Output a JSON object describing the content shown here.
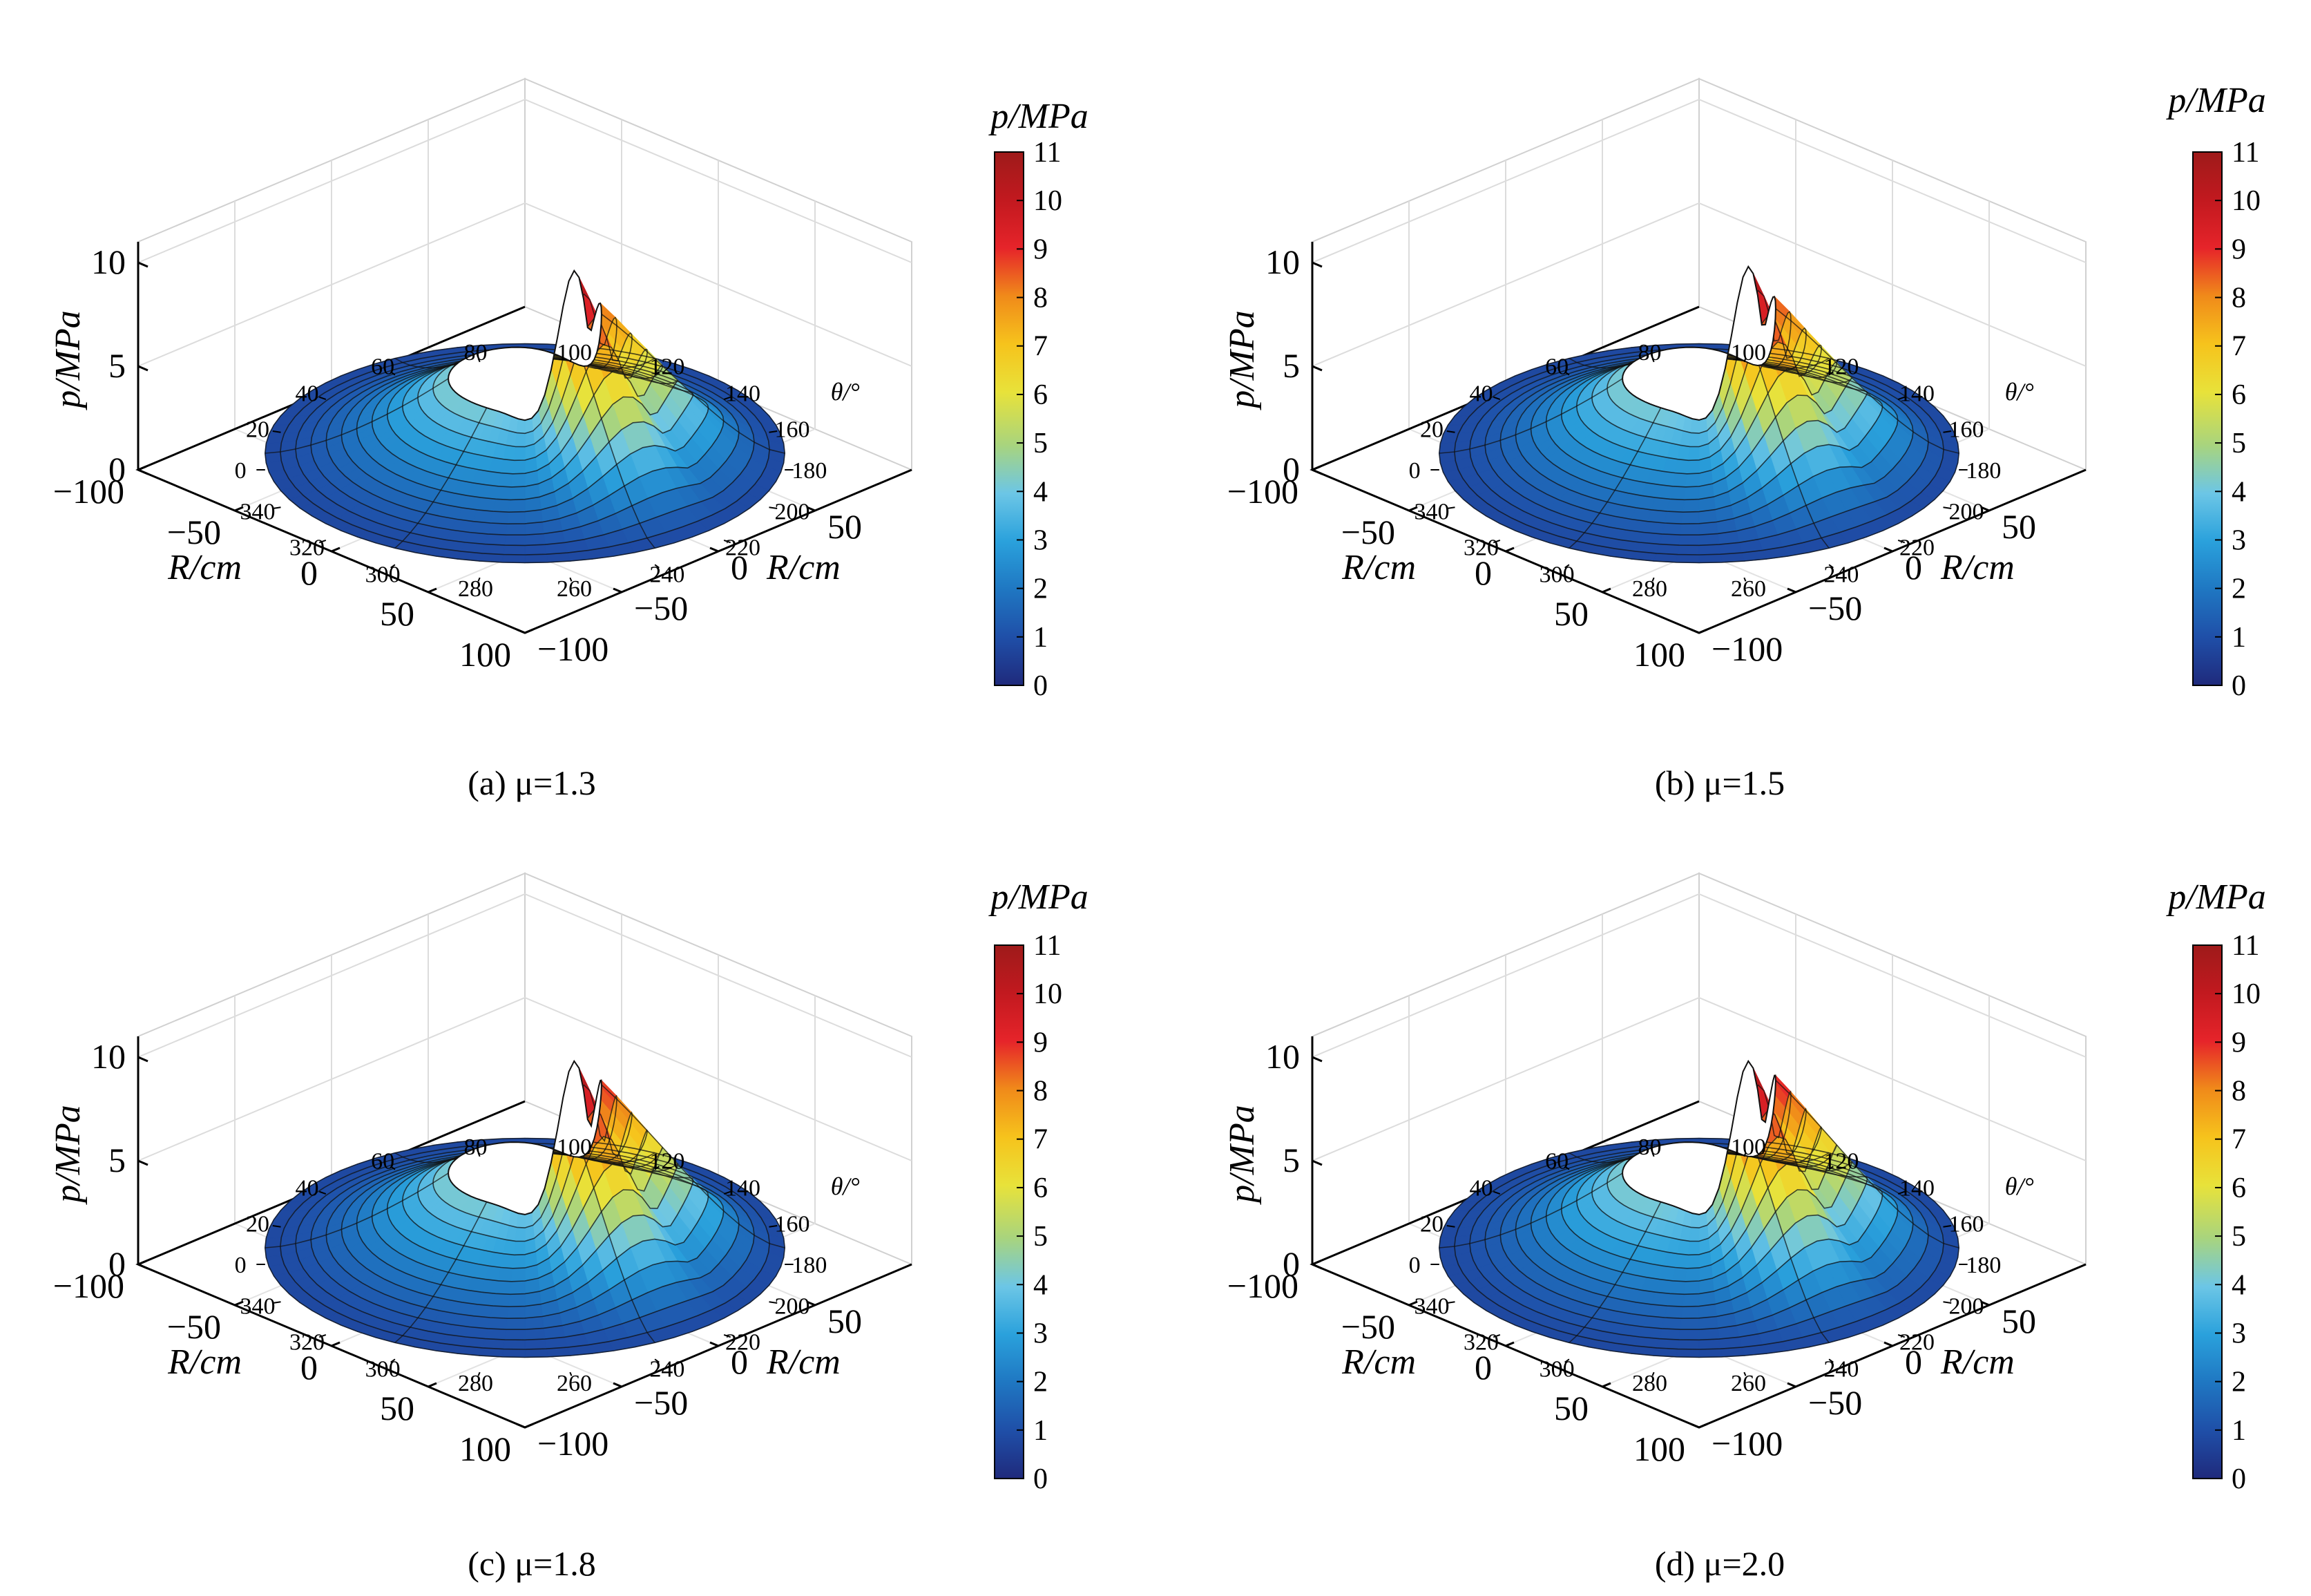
{
  "figure": {
    "colorbar_title": "p/MPa",
    "colorbar_ticks": [
      "0",
      "1",
      "2",
      "3",
      "4",
      "5",
      "6",
      "7",
      "8",
      "9",
      "10",
      "11"
    ],
    "colormap": [
      "#1f2a7c",
      "#1f4fa8",
      "#1f77c2",
      "#2aa1dc",
      "#6cc6e6",
      "#a8d47e",
      "#e8e23a",
      "#f6c31c",
      "#f08a1a",
      "#e6242a",
      "#c2191f",
      "#9e1a1a"
    ]
  },
  "chart_data": [
    {
      "type": "surface3d",
      "caption": "(a) μ=1.3",
      "zlabel": "p/MPa",
      "xlabel": "R/cm",
      "ylabel": "R/cm",
      "theta_label": "θ/°",
      "z_ticks": [
        "0",
        "5",
        "10"
      ],
      "x_ticks": [
        "−100",
        "−50",
        "0",
        "50",
        "100"
      ],
      "y_ticks": [
        "−100",
        "−50",
        "0",
        "50"
      ],
      "theta_ticks": [
        "0",
        "20",
        "40",
        "60",
        "80",
        "100",
        "120",
        "140",
        "160",
        "180",
        "200",
        "220",
        "240",
        "260",
        "280",
        "300",
        "320",
        "340"
      ],
      "zlim": [
        0,
        10
      ],
      "clim": [
        0,
        11
      ],
      "peak_p": 10.8,
      "peak_theta": 230,
      "secondary_peak_p": 9.6,
      "secondary_peak_theta": 195
    },
    {
      "type": "surface3d",
      "caption": "(b) μ=1.5",
      "zlabel": "p/MPa",
      "xlabel": "R/cm",
      "ylabel": "R/cm",
      "theta_label": "θ/°",
      "z_ticks": [
        "0",
        "5",
        "10"
      ],
      "x_ticks": [
        "−100",
        "−50",
        "0",
        "50",
        "100"
      ],
      "y_ticks": [
        "−100",
        "−50",
        "0",
        "50"
      ],
      "theta_ticks": [
        "0",
        "20",
        "40",
        "60",
        "80",
        "100",
        "120",
        "140",
        "160",
        "180",
        "200",
        "220",
        "240",
        "260",
        "280",
        "300",
        "320",
        "340"
      ],
      "zlim": [
        0,
        10
      ],
      "clim": [
        0,
        11
      ],
      "peak_p": 11,
      "peak_theta": 230,
      "secondary_peak_p": 10,
      "secondary_peak_theta": 195
    },
    {
      "type": "surface3d",
      "caption": "(c) μ=1.8",
      "zlabel": "p/MPa",
      "xlabel": "R/cm",
      "ylabel": "R/cm",
      "theta_label": "θ/°",
      "z_ticks": [
        "0",
        "5",
        "10"
      ],
      "x_ticks": [
        "−100",
        "−50",
        "0",
        "50",
        "100"
      ],
      "y_ticks": [
        "−100",
        "−50",
        "0",
        "50"
      ],
      "theta_ticks": [
        "0",
        "20",
        "40",
        "60",
        "80",
        "100",
        "120",
        "140",
        "160",
        "180",
        "200",
        "220",
        "240",
        "260",
        "280",
        "300",
        "320",
        "340"
      ],
      "zlim": [
        0,
        10
      ],
      "clim": [
        0,
        11
      ],
      "peak_p": 11,
      "peak_theta": 230,
      "secondary_peak_p": 10.5,
      "secondary_peak_theta": 190
    },
    {
      "type": "surface3d",
      "caption": "(d) μ=2.0",
      "zlabel": "p/MPa",
      "xlabel": "R/cm",
      "ylabel": "R/cm",
      "theta_label": "θ/°",
      "z_ticks": [
        "0",
        "5",
        "10"
      ],
      "x_ticks": [
        "−100",
        "−50",
        "0",
        "50",
        "100"
      ],
      "y_ticks": [
        "−100",
        "−50",
        "0",
        "50"
      ],
      "theta_ticks": [
        "0",
        "20",
        "40",
        "60",
        "80",
        "100",
        "120",
        "140",
        "160",
        "180",
        "200",
        "220",
        "240",
        "260",
        "280",
        "300",
        "320",
        "340"
      ],
      "zlim": [
        0,
        10
      ],
      "clim": [
        0,
        11
      ],
      "peak_p": 11,
      "peak_theta": 230,
      "secondary_peak_p": 10.8,
      "secondary_peak_theta": 190
    }
  ]
}
